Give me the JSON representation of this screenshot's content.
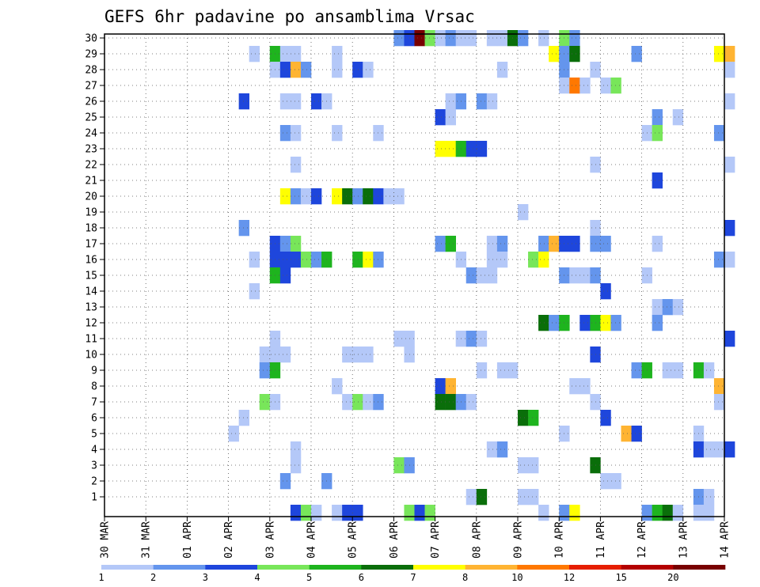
{
  "chart_data": {
    "type": "heatmap",
    "title": "GEFS 6hr padavine po ansamblima Vrsac",
    "xlabel": "",
    "ylabel": "",
    "x_ticks": [
      "30 MAR",
      "31 MAR",
      "01 APR",
      "02 APR",
      "03 APR",
      "04 APR",
      "05 APR",
      "06 APR",
      "07 APR",
      "08 APR",
      "09 APR",
      "10 APR",
      "11 APR",
      "12 APR",
      "13 APR",
      "14 APR"
    ],
    "x_range_days": [
      0,
      15
    ],
    "y_ticks": [
      1,
      2,
      3,
      4,
      5,
      6,
      7,
      8,
      9,
      10,
      11,
      12,
      13,
      14,
      15,
      16,
      17,
      18,
      19,
      20,
      21,
      22,
      23,
      24,
      25,
      26,
      27,
      28,
      29,
      30
    ],
    "ylim": [
      0,
      30
    ],
    "grid": true,
    "colorbar": {
      "labels": [
        "1",
        "2",
        "3",
        "4",
        "5",
        "6",
        "7",
        "8",
        "10",
        "12",
        "15",
        "20"
      ],
      "colors": [
        "#b4c8f8",
        "#6495ed",
        "#1e46dc",
        "#78e65a",
        "#1eb41e",
        "#0a6e0a",
        "#ffff00",
        "#ffb432",
        "#ff7800",
        "#e61e00",
        "#b40000",
        "#780000"
      ]
    },
    "cells_note": "Each cell: [member_row, start_day_offset_from_30MAR, precip_class_index(0-based into colorbar.colors)]",
    "cells": [
      [
        30,
        7.0,
        1
      ],
      [
        30,
        7.25,
        2
      ],
      [
        30,
        7.5,
        11
      ],
      [
        30,
        7.75,
        3
      ],
      [
        30,
        8.0,
        0
      ],
      [
        30,
        8.25,
        1
      ],
      [
        30,
        8.5,
        0
      ],
      [
        30,
        8.75,
        0
      ],
      [
        30,
        9.25,
        0
      ],
      [
        30,
        9.5,
        0
      ],
      [
        30,
        9.75,
        5
      ],
      [
        30,
        10.0,
        1
      ],
      [
        30,
        10.5,
        0
      ],
      [
        30,
        11.0,
        3
      ],
      [
        30,
        11.25,
        1
      ],
      [
        29,
        3.5,
        0
      ],
      [
        29,
        4.0,
        4
      ],
      [
        29,
        4.25,
        0
      ],
      [
        29,
        4.5,
        0
      ],
      [
        29,
        5.5,
        0
      ],
      [
        29,
        10.75,
        6
      ],
      [
        29,
        11.0,
        1
      ],
      [
        29,
        11.25,
        5
      ],
      [
        29,
        12.75,
        1
      ],
      [
        29,
        14.75,
        6
      ],
      [
        29,
        15.0,
        7
      ],
      [
        28,
        4.0,
        0
      ],
      [
        28,
        4.25,
        2
      ],
      [
        28,
        4.5,
        7
      ],
      [
        28,
        4.75,
        1
      ],
      [
        28,
        5.5,
        0
      ],
      [
        28,
        6.0,
        2
      ],
      [
        28,
        6.25,
        0
      ],
      [
        28,
        9.5,
        0
      ],
      [
        28,
        11.0,
        1
      ],
      [
        28,
        11.75,
        0
      ],
      [
        28,
        15.0,
        0
      ],
      [
        27,
        11.0,
        0
      ],
      [
        27,
        11.25,
        8
      ],
      [
        27,
        11.5,
        0
      ],
      [
        27,
        12.0,
        0
      ],
      [
        27,
        12.25,
        3
      ],
      [
        26,
        3.25,
        2
      ],
      [
        26,
        4.25,
        0
      ],
      [
        26,
        4.5,
        0
      ],
      [
        26,
        5.0,
        2
      ],
      [
        26,
        5.25,
        0
      ],
      [
        26,
        8.25,
        0
      ],
      [
        26,
        8.5,
        1
      ],
      [
        26,
        9.0,
        1
      ],
      [
        26,
        9.25,
        0
      ],
      [
        26,
        15.0,
        0
      ],
      [
        25,
        8.0,
        2
      ],
      [
        25,
        8.25,
        0
      ],
      [
        25,
        13.25,
        1
      ],
      [
        25,
        13.75,
        0
      ],
      [
        24,
        4.25,
        1
      ],
      [
        24,
        4.5,
        0
      ],
      [
        24,
        5.5,
        0
      ],
      [
        24,
        6.5,
        0
      ],
      [
        24,
        13.0,
        0
      ],
      [
        24,
        13.25,
        3
      ],
      [
        24,
        14.75,
        1
      ],
      [
        23,
        8.0,
        6
      ],
      [
        23,
        8.25,
        6
      ],
      [
        23,
        8.5,
        4
      ],
      [
        23,
        8.75,
        2
      ],
      [
        23,
        9.0,
        2
      ],
      [
        22,
        4.5,
        0
      ],
      [
        22,
        11.75,
        0
      ],
      [
        22,
        15.0,
        0
      ],
      [
        21,
        13.25,
        2
      ],
      [
        20,
        4.25,
        6
      ],
      [
        20,
        4.5,
        1
      ],
      [
        20,
        4.75,
        0
      ],
      [
        20,
        5.0,
        2
      ],
      [
        20,
        5.5,
        6
      ],
      [
        20,
        5.75,
        5
      ],
      [
        20,
        6.0,
        1
      ],
      [
        20,
        6.25,
        5
      ],
      [
        20,
        6.5,
        2
      ],
      [
        20,
        6.75,
        0
      ],
      [
        20,
        7.0,
        0
      ],
      [
        19,
        10.0,
        0
      ],
      [
        18,
        3.25,
        1
      ],
      [
        18,
        11.75,
        0
      ],
      [
        18,
        15.0,
        2
      ],
      [
        17,
        4.0,
        2
      ],
      [
        17,
        4.25,
        1
      ],
      [
        17,
        4.5,
        3
      ],
      [
        17,
        8.0,
        1
      ],
      [
        17,
        8.25,
        4
      ],
      [
        17,
        9.25,
        0
      ],
      [
        17,
        9.5,
        1
      ],
      [
        17,
        10.5,
        1
      ],
      [
        17,
        10.75,
        7
      ],
      [
        17,
        11.0,
        2
      ],
      [
        17,
        11.25,
        2
      ],
      [
        17,
        11.75,
        1
      ],
      [
        17,
        12.0,
        1
      ],
      [
        17,
        13.25,
        0
      ],
      [
        16,
        3.5,
        0
      ],
      [
        16,
        4.0,
        2
      ],
      [
        16,
        4.25,
        2
      ],
      [
        16,
        4.5,
        2
      ],
      [
        16,
        4.75,
        3
      ],
      [
        16,
        5.0,
        1
      ],
      [
        16,
        5.25,
        4
      ],
      [
        16,
        6.0,
        4
      ],
      [
        16,
        6.25,
        6
      ],
      [
        16,
        6.5,
        1
      ],
      [
        16,
        8.5,
        0
      ],
      [
        16,
        9.25,
        0
      ],
      [
        16,
        9.5,
        0
      ],
      [
        16,
        10.25,
        3
      ],
      [
        16,
        10.5,
        6
      ],
      [
        16,
        14.75,
        1
      ],
      [
        16,
        15.0,
        0
      ],
      [
        15,
        4.0,
        4
      ],
      [
        15,
        4.25,
        2
      ],
      [
        15,
        8.75,
        1
      ],
      [
        15,
        9.0,
        0
      ],
      [
        15,
        9.25,
        0
      ],
      [
        15,
        11.0,
        1
      ],
      [
        15,
        11.25,
        0
      ],
      [
        15,
        11.5,
        0
      ],
      [
        15,
        11.75,
        1
      ],
      [
        15,
        13.0,
        0
      ],
      [
        14,
        3.5,
        0
      ],
      [
        14,
        12.0,
        2
      ],
      [
        13,
        13.25,
        0
      ],
      [
        13,
        13.5,
        1
      ],
      [
        13,
        13.75,
        0
      ],
      [
        12,
        10.5,
        5
      ],
      [
        12,
        10.75,
        1
      ],
      [
        12,
        11.0,
        4
      ],
      [
        12,
        11.5,
        2
      ],
      [
        12,
        11.75,
        4
      ],
      [
        12,
        12.0,
        6
      ],
      [
        12,
        12.25,
        1
      ],
      [
        12,
        13.25,
        1
      ],
      [
        11,
        4.0,
        0
      ],
      [
        11,
        7.0,
        0
      ],
      [
        11,
        7.25,
        0
      ],
      [
        11,
        8.5,
        0
      ],
      [
        11,
        8.75,
        1
      ],
      [
        11,
        9.0,
        0
      ],
      [
        11,
        15.0,
        2
      ],
      [
        10,
        3.75,
        0
      ],
      [
        10,
        4.0,
        0
      ],
      [
        10,
        4.25,
        0
      ],
      [
        10,
        5.75,
        0
      ],
      [
        10,
        6.0,
        0
      ],
      [
        10,
        6.25,
        0
      ],
      [
        10,
        7.25,
        0
      ],
      [
        10,
        11.75,
        2
      ],
      [
        9,
        3.75,
        1
      ],
      [
        9,
        4.0,
        4
      ],
      [
        9,
        9.0,
        0
      ],
      [
        9,
        9.5,
        0
      ],
      [
        9,
        9.75,
        0
      ],
      [
        9,
        12.75,
        1
      ],
      [
        9,
        13.0,
        4
      ],
      [
        9,
        13.5,
        0
      ],
      [
        9,
        13.75,
        0
      ],
      [
        9,
        14.25,
        4
      ],
      [
        9,
        14.5,
        0
      ],
      [
        8,
        5.5,
        0
      ],
      [
        8,
        8.0,
        2
      ],
      [
        8,
        8.25,
        7
      ],
      [
        8,
        11.25,
        0
      ],
      [
        8,
        11.5,
        0
      ],
      [
        8,
        14.75,
        7
      ],
      [
        7,
        3.75,
        3
      ],
      [
        7,
        4.0,
        0
      ],
      [
        7,
        5.75,
        0
      ],
      [
        7,
        6.0,
        3
      ],
      [
        7,
        6.25,
        0
      ],
      [
        7,
        6.5,
        1
      ],
      [
        7,
        8.0,
        5
      ],
      [
        7,
        8.25,
        5
      ],
      [
        7,
        8.5,
        1
      ],
      [
        7,
        8.75,
        0
      ],
      [
        7,
        11.75,
        0
      ],
      [
        7,
        14.75,
        0
      ],
      [
        6,
        3.25,
        0
      ],
      [
        6,
        10.0,
        5
      ],
      [
        6,
        10.25,
        4
      ],
      [
        6,
        12.0,
        2
      ],
      [
        5,
        3.0,
        0
      ],
      [
        5,
        11.0,
        0
      ],
      [
        5,
        12.5,
        7
      ],
      [
        5,
        12.75,
        2
      ],
      [
        5,
        14.25,
        0
      ],
      [
        4,
        4.5,
        0
      ],
      [
        4,
        9.25,
        0
      ],
      [
        4,
        9.5,
        1
      ],
      [
        4,
        14.25,
        2
      ],
      [
        4,
        14.5,
        0
      ],
      [
        4,
        14.75,
        0
      ],
      [
        4,
        15.0,
        2
      ],
      [
        3,
        4.5,
        0
      ],
      [
        3,
        7.0,
        3
      ],
      [
        3,
        7.25,
        1
      ],
      [
        3,
        10.0,
        0
      ],
      [
        3,
        10.25,
        0
      ],
      [
        3,
        11.75,
        5
      ],
      [
        2,
        4.25,
        1
      ],
      [
        2,
        5.25,
        1
      ],
      [
        2,
        12.0,
        0
      ],
      [
        2,
        12.25,
        0
      ],
      [
        1,
        8.75,
        0
      ],
      [
        1,
        9.0,
        5
      ],
      [
        1,
        10.0,
        0
      ],
      [
        1,
        10.25,
        0
      ],
      [
        1,
        14.25,
        1
      ],
      [
        1,
        14.5,
        0
      ],
      [
        0,
        4.5,
        2
      ],
      [
        0,
        4.75,
        3
      ],
      [
        0,
        5.0,
        0
      ],
      [
        0,
        5.5,
        0
      ],
      [
        0,
        5.75,
        2
      ],
      [
        0,
        6.0,
        2
      ],
      [
        0,
        7.25,
        3
      ],
      [
        0,
        7.5,
        2
      ],
      [
        0,
        7.75,
        3
      ],
      [
        0,
        10.5,
        0
      ],
      [
        0,
        11.0,
        1
      ],
      [
        0,
        11.25,
        6
      ],
      [
        0,
        13.0,
        1
      ],
      [
        0,
        13.25,
        4
      ],
      [
        0,
        13.5,
        5
      ],
      [
        0,
        13.75,
        0
      ],
      [
        0,
        14.25,
        0
      ],
      [
        0,
        14.5,
        0
      ]
    ]
  }
}
